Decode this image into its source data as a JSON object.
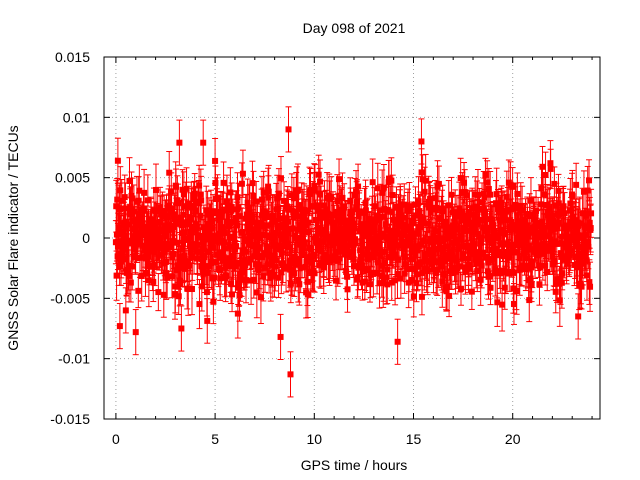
{
  "chart_data": {
    "type": "scatter",
    "title": "Day 098 of 2021",
    "xlabel": "GPS time / hours",
    "ylabel": "GNSS Solar Flare indicator / TECUs",
    "xlim": [
      -0.6,
      24.4
    ],
    "ylim": [
      -0.015,
      0.015
    ],
    "xticks": [
      "0",
      "5",
      "10",
      "15",
      "20"
    ],
    "yticks": [
      "-0.015",
      "-0.01",
      "-0.005",
      "0",
      "0.005",
      "0.01",
      "0.015"
    ],
    "grid": true,
    "series": [
      {
        "marker": "square",
        "error_bars": true,
        "color": "#ff0000",
        "description_points": [
          {
            "x": 0.1,
            "y": 0.0064
          },
          {
            "x": 0.2,
            "y": -0.0073
          },
          {
            "x": 0.5,
            "y": -0.006
          },
          {
            "x": 1.0,
            "y": -0.0078
          },
          {
            "x": 3.2,
            "y": 0.0079
          },
          {
            "x": 3.3,
            "y": -0.0075
          },
          {
            "x": 4.4,
            "y": 0.0079
          },
          {
            "x": 8.7,
            "y": 0.009
          },
          {
            "x": 8.8,
            "y": -0.0113
          },
          {
            "x": 8.3,
            "y": -0.0082
          },
          {
            "x": 14.2,
            "y": -0.0086
          },
          {
            "x": 15.4,
            "y": 0.008
          },
          {
            "x": 21.9,
            "y": 0.0062
          },
          {
            "x": 23.3,
            "y": -0.0065
          }
        ],
        "typical_spread": 0.004,
        "typical_error": 0.0017
      }
    ]
  }
}
